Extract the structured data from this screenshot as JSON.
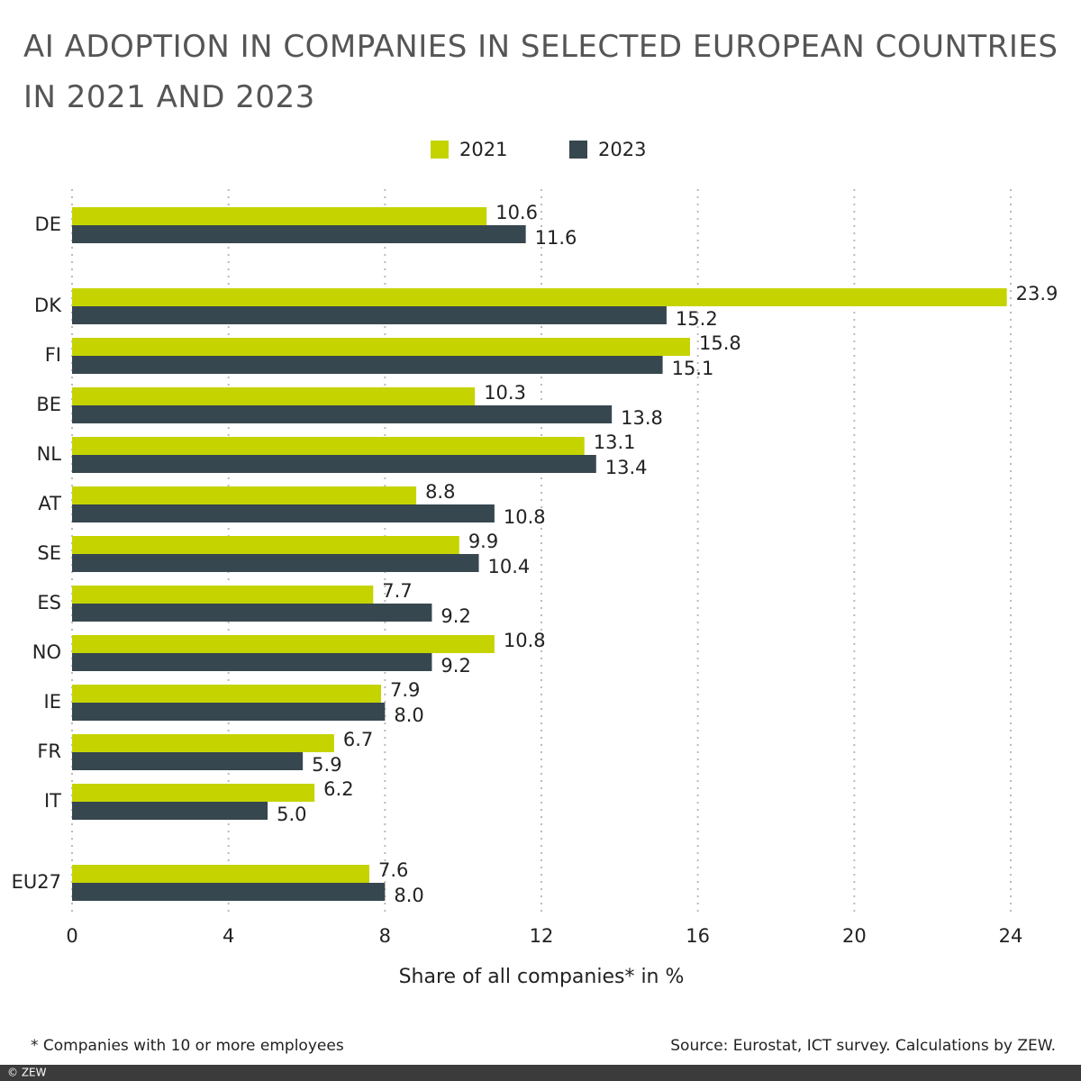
{
  "chart_data": {
    "type": "hbar",
    "title": "AI ADOPTION IN COMPANIES IN SELECTED EUROPEAN COUNTRIES IN 2021 AND 2023",
    "categories": [
      "DE",
      "DK",
      "FI",
      "BE",
      "NL",
      "AT",
      "SE",
      "ES",
      "NO",
      "IE",
      "FR",
      "IT",
      "EU27"
    ],
    "series": [
      {
        "name": "2021",
        "color": "#c5d400",
        "values": [
          10.6,
          23.9,
          15.8,
          10.3,
          13.1,
          8.8,
          9.9,
          7.7,
          10.8,
          7.9,
          6.7,
          6.2,
          7.6
        ],
        "value_labels": [
          "10.6",
          "23.9",
          "15.8",
          "10.3",
          "13.1",
          "8.8",
          "9.9",
          "7.7",
          "10.8",
          "7.9",
          "6.7",
          "6.2",
          "7.6"
        ]
      },
      {
        "name": "2023",
        "color": "#37474f",
        "values": [
          11.6,
          15.2,
          15.1,
          13.8,
          13.4,
          10.8,
          10.4,
          9.2,
          9.2,
          8.0,
          5.9,
          5.0,
          8.0
        ],
        "value_labels": [
          "11.6",
          "15.2",
          "15.1",
          "13.8",
          "13.4",
          "10.8",
          "10.4",
          "9.2",
          "9.2",
          "8.0",
          "5.9",
          "5.0",
          "8.0"
        ]
      }
    ],
    "xlim": [
      0,
      24
    ],
    "xticks": [
      0,
      4,
      8,
      12,
      16,
      20,
      24
    ],
    "grid": true,
    "xlabel": "Share of all companies* in %",
    "footnote": "* Companies with 10 or more employees",
    "source": "Source: Eurostat, ICT survey. Calculations by ZEW.",
    "copyright": "© ZEW"
  }
}
